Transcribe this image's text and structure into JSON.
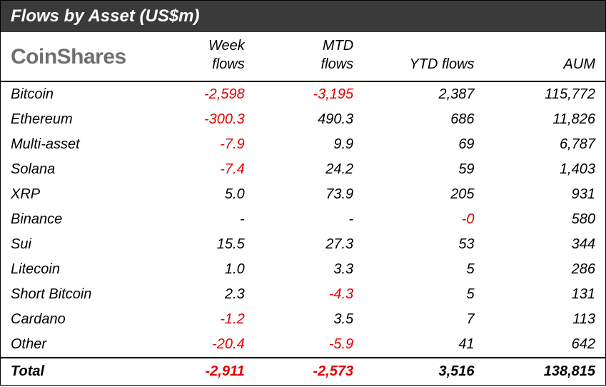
{
  "title": "Flows by Asset (US$m)",
  "brand": "CoinShares",
  "colors": {
    "header_bg": "#3a3a3a",
    "header_text": "#ffffff",
    "negative": "#e60000",
    "positive": "#000000",
    "border": "#000000",
    "brand_text": "#565656"
  },
  "typography": {
    "title_fontsize": 24,
    "brand_fontsize": 30,
    "header_fontsize": 20,
    "cell_fontsize": 20,
    "font_style": "italic"
  },
  "columns": [
    {
      "key": "asset",
      "label": "",
      "align": "left",
      "width_pct": 24
    },
    {
      "key": "week",
      "label_line1": "Week",
      "label_line2": "flows",
      "align": "right",
      "width_pct": 18
    },
    {
      "key": "mtd",
      "label_line1": "MTD",
      "label_line2": "flows",
      "align": "right",
      "width_pct": 18
    },
    {
      "key": "ytd",
      "label_line1": "",
      "label_line2": "YTD flows",
      "align": "right",
      "width_pct": 20
    },
    {
      "key": "aum",
      "label_line1": "",
      "label_line2": "AUM",
      "align": "right",
      "width_pct": 20
    }
  ],
  "rows": [
    {
      "asset": "Bitcoin",
      "week": {
        "text": "-2,598",
        "neg": true
      },
      "mtd": {
        "text": "-3,195",
        "neg": true
      },
      "ytd": {
        "text": "2,387",
        "neg": false
      },
      "aum": {
        "text": "115,772",
        "neg": false
      }
    },
    {
      "asset": "Ethereum",
      "week": {
        "text": "-300.3",
        "neg": true
      },
      "mtd": {
        "text": "490.3",
        "neg": false
      },
      "ytd": {
        "text": "686",
        "neg": false
      },
      "aum": {
        "text": "11,826",
        "neg": false
      }
    },
    {
      "asset": "Multi-asset",
      "week": {
        "text": "-7.9",
        "neg": true
      },
      "mtd": {
        "text": "9.9",
        "neg": false
      },
      "ytd": {
        "text": "69",
        "neg": false
      },
      "aum": {
        "text": "6,787",
        "neg": false
      }
    },
    {
      "asset": "Solana",
      "week": {
        "text": "-7.4",
        "neg": true
      },
      "mtd": {
        "text": "24.2",
        "neg": false
      },
      "ytd": {
        "text": "59",
        "neg": false
      },
      "aum": {
        "text": "1,403",
        "neg": false
      }
    },
    {
      "asset": "XRP",
      "week": {
        "text": "5.0",
        "neg": false
      },
      "mtd": {
        "text": "73.9",
        "neg": false
      },
      "ytd": {
        "text": "205",
        "neg": false
      },
      "aum": {
        "text": "931",
        "neg": false
      }
    },
    {
      "asset": "Binance",
      "week": {
        "text": "-",
        "neg": false
      },
      "mtd": {
        "text": "-",
        "neg": false
      },
      "ytd": {
        "text": "-0",
        "neg": true
      },
      "aum": {
        "text": "580",
        "neg": false
      }
    },
    {
      "asset": "Sui",
      "week": {
        "text": "15.5",
        "neg": false
      },
      "mtd": {
        "text": "27.3",
        "neg": false
      },
      "ytd": {
        "text": "53",
        "neg": false
      },
      "aum": {
        "text": "344",
        "neg": false
      }
    },
    {
      "asset": "Litecoin",
      "week": {
        "text": "1.0",
        "neg": false
      },
      "mtd": {
        "text": "3.3",
        "neg": false
      },
      "ytd": {
        "text": "5",
        "neg": false
      },
      "aum": {
        "text": "286",
        "neg": false
      }
    },
    {
      "asset": "Short Bitcoin",
      "week": {
        "text": "2.3",
        "neg": false
      },
      "mtd": {
        "text": "-4.3",
        "neg": true
      },
      "ytd": {
        "text": "5",
        "neg": false
      },
      "aum": {
        "text": "131",
        "neg": false
      }
    },
    {
      "asset": "Cardano",
      "week": {
        "text": "-1.2",
        "neg": true
      },
      "mtd": {
        "text": "3.5",
        "neg": false
      },
      "ytd": {
        "text": "7",
        "neg": false
      },
      "aum": {
        "text": "113",
        "neg": false
      }
    },
    {
      "asset": "Other",
      "week": {
        "text": "-20.4",
        "neg": true
      },
      "mtd": {
        "text": "-5.9",
        "neg": true
      },
      "ytd": {
        "text": "41",
        "neg": false
      },
      "aum": {
        "text": "642",
        "neg": false
      }
    }
  ],
  "total": {
    "label": "Total",
    "week": {
      "text": "-2,911",
      "neg": true
    },
    "mtd": {
      "text": "-2,573",
      "neg": true
    },
    "ytd": {
      "text": "3,516",
      "neg": false
    },
    "aum": {
      "text": "138,815",
      "neg": false
    }
  }
}
